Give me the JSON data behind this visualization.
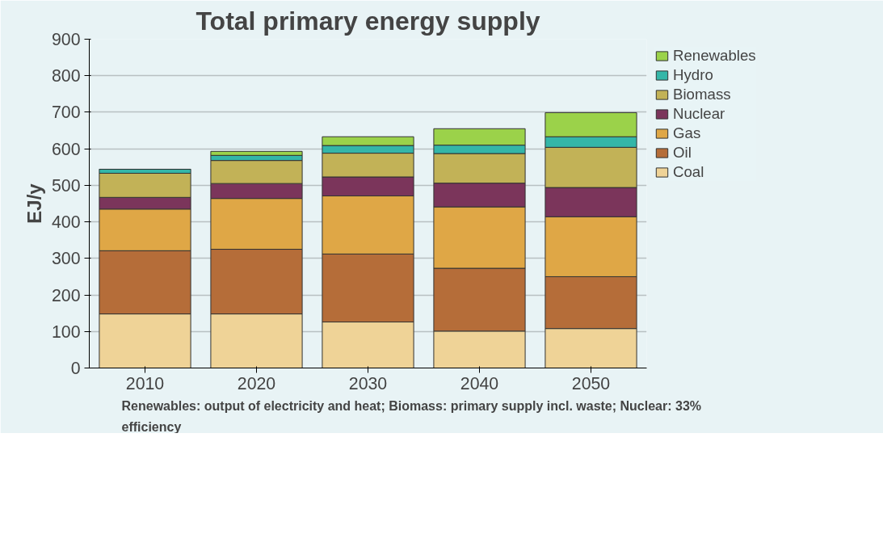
{
  "chart_data": {
    "type": "bar",
    "stacked": true,
    "title": "Total primary energy supply",
    "ylabel": "EJ/y",
    "categories": [
      "2010",
      "2020",
      "2030",
      "2040",
      "2050"
    ],
    "series": [
      {
        "name": "Coal",
        "color": "#efd397",
        "values": [
          148,
          148,
          126,
          101,
          108
        ]
      },
      {
        "name": "Oil",
        "color": "#b56d39",
        "values": [
          173,
          177,
          186,
          172,
          142
        ]
      },
      {
        "name": "Gas",
        "color": "#dfa746",
        "values": [
          114,
          139,
          159,
          168,
          164
        ]
      },
      {
        "name": "Nuclear",
        "color": "#7b355b",
        "values": [
          32,
          41,
          52,
          65,
          80
        ]
      },
      {
        "name": "Biomass",
        "color": "#c2b257",
        "values": [
          66,
          63,
          65,
          81,
          110
        ]
      },
      {
        "name": "Hydro",
        "color": "#34b6a8",
        "values": [
          11,
          14,
          21,
          23,
          29
        ]
      },
      {
        "name": "Renewables",
        "color": "#9bd24a",
        "values": [
          null,
          11,
          24,
          45,
          66
        ]
      }
    ],
    "ylim": [
      0,
      900
    ],
    "yticks": [
      0,
      100,
      200,
      300,
      400,
      500,
      600,
      700,
      800,
      900
    ],
    "grid": "y",
    "legend": "right",
    "annotations": [
      "Renewables: output of electricity and heat; Biomass: primary supply incl. waste; Nuclear: 33% efficiency"
    ]
  }
}
